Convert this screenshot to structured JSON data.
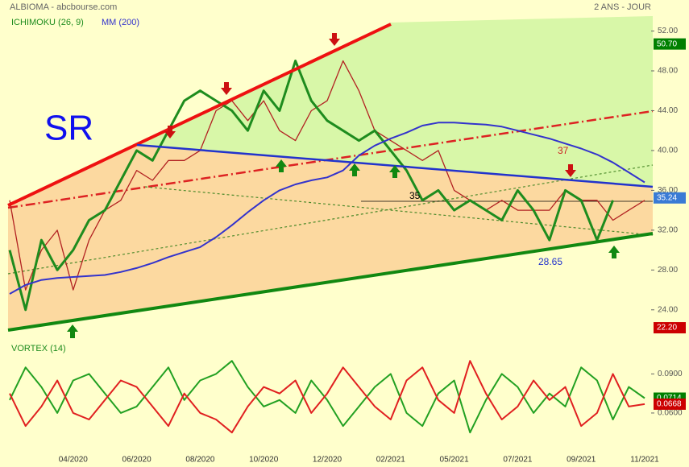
{
  "chart_data": [
    {
      "type": "line",
      "title": "ALBIOMA - abcbourse.com",
      "subtitle": "2 ANS - JOUR",
      "categories": [
        null,
        null,
        null,
        null,
        "04/2020",
        null,
        null,
        null,
        "06/2020",
        null,
        null,
        null,
        "08/2020",
        null,
        null,
        null,
        "10/2020",
        null,
        null,
        null,
        "12/2020",
        null,
        null,
        null,
        "02/2021",
        null,
        null,
        null,
        "05/2021",
        null,
        null,
        null,
        "07/2021",
        null,
        null,
        null,
        "09/2021",
        null,
        null,
        null,
        "11/2021"
      ],
      "values": [
        35,
        26,
        30,
        32,
        26,
        31,
        34,
        35,
        38,
        37,
        39,
        39,
        40,
        44,
        45,
        43,
        45,
        42,
        41,
        44,
        45,
        49,
        46,
        42,
        41,
        40,
        39,
        40,
        36,
        35,
        34,
        35,
        34,
        34,
        34,
        36,
        35,
        35,
        33,
        34,
        35
      ],
      "color": "#b22222",
      "series": [
        {
          "name": "ICHIMOKU (26, 9)",
          "color": "#1e8c1e",
          "values": [
            30,
            24,
            31,
            28,
            30,
            33,
            34,
            37,
            40,
            39,
            42,
            45,
            46,
            45,
            44,
            42,
            46,
            44,
            49,
            45,
            43,
            42,
            41,
            42,
            40,
            38,
            35,
            36,
            34,
            35,
            34,
            33,
            36,
            34,
            31,
            36,
            35,
            31,
            35,
            null,
            null
          ]
        },
        {
          "name": "MM (200)",
          "color": "#3333cc",
          "values": [
            25.6,
            26.5,
            27,
            27.2,
            27.3,
            27.4,
            27.5,
            27.8,
            28.2,
            28.7,
            29.3,
            29.8,
            30.3,
            31.3,
            32.5,
            33.8,
            35,
            36,
            36.6,
            37,
            37.3,
            38,
            39.5,
            40.5,
            41.2,
            41.8,
            42.5,
            42.8,
            42.8,
            42.7,
            42.6,
            42.4,
            42,
            41.6,
            41.2,
            40.7,
            40.2,
            39.6,
            38.8,
            37.8,
            36.8
          ]
        }
      ],
      "ylim": [
        21.8,
        53.5
      ],
      "yticks": [
        {
          "value": 24,
          "label": "24.00"
        },
        {
          "value": 28,
          "label": "28.00"
        },
        {
          "value": 32,
          "label": "32.00"
        },
        {
          "value": 36,
          "label": "36.00"
        },
        {
          "value": 40,
          "label": "40.00"
        },
        {
          "value": 44,
          "label": "44.00"
        },
        {
          "value": 48,
          "label": "48.00"
        },
        {
          "value": 52,
          "label": "52.00"
        }
      ],
      "price_tags": [
        {
          "value": 50.7,
          "label": "50.70",
          "color": "#008000"
        },
        {
          "value": 35.24,
          "label": "35.24",
          "color": "#3a7bd5"
        },
        {
          "value": 22.2,
          "label": "22.20",
          "color": "#cc0000"
        }
      ],
      "annotations": [
        "SR",
        "35",
        "37",
        "28.65"
      ]
    },
    {
      "type": "line",
      "title": "VORTEX (14)",
      "series": [
        {
          "color": "#22a022",
          "values": [
            0.07,
            0.095,
            0.08,
            0.06,
            0.085,
            0.09,
            0.075,
            0.06,
            0.065,
            0.08,
            0.095,
            0.07,
            0.085,
            0.09,
            0.1,
            0.08,
            0.065,
            0.07,
            0.06,
            0.085,
            0.07,
            0.05,
            0.065,
            0.08,
            0.09,
            0.06,
            0.05,
            0.075,
            0.085,
            0.045,
            0.07,
            0.09,
            0.08,
            0.06,
            0.075,
            0.065,
            0.095,
            0.085,
            0.055,
            0.08,
            0.0714
          ]
        },
        {
          "color": "#e02020",
          "values": [
            0.075,
            0.05,
            0.065,
            0.085,
            0.06,
            0.055,
            0.07,
            0.085,
            0.08,
            0.065,
            0.05,
            0.075,
            0.06,
            0.055,
            0.045,
            0.065,
            0.08,
            0.075,
            0.085,
            0.06,
            0.075,
            0.095,
            0.08,
            0.065,
            0.055,
            0.085,
            0.095,
            0.07,
            0.06,
            0.1,
            0.075,
            0.055,
            0.065,
            0.085,
            0.07,
            0.08,
            0.05,
            0.06,
            0.09,
            0.065,
            0.0668
          ]
        }
      ],
      "ylim": [
        0.034,
        0.102
      ],
      "yticks": [
        {
          "value": 0.09,
          "label": "0.0900"
        },
        {
          "value": 0.06,
          "label": "0.0600"
        }
      ],
      "price_tags": [
        {
          "value": 0.0714,
          "label": "0.0714",
          "color": "#008000"
        },
        {
          "value": 0.0668,
          "label": "0.0668",
          "color": "#cc0000"
        }
      ]
    }
  ]
}
